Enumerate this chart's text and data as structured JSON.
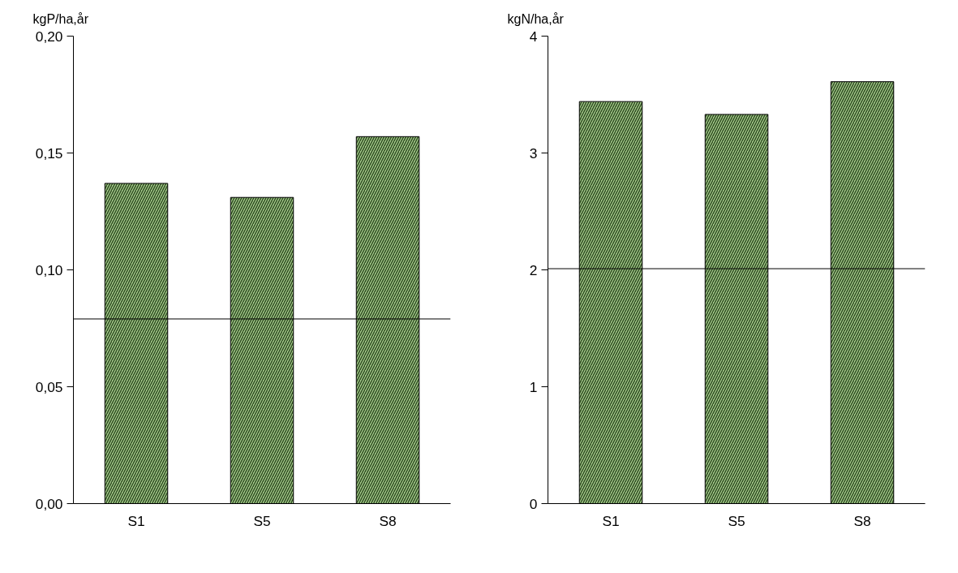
{
  "chart_data": [
    {
      "type": "bar",
      "ylabel": "kgP/ha,år",
      "categories": [
        "S1",
        "S5",
        "S8"
      ],
      "values": [
        0.137,
        0.131,
        0.157
      ],
      "color": "#a9d08e",
      "ylim": [
        0,
        0.2
      ],
      "yticks": [
        {
          "value": 0,
          "label": "0,00"
        },
        {
          "value": 0.05,
          "label": "0,05"
        },
        {
          "value": 0.1,
          "label": "0,10"
        },
        {
          "value": 0.15,
          "label": "0,15"
        },
        {
          "value": 0.2,
          "label": "0,20"
        }
      ],
      "grid": false,
      "ref_lines": [
        {
          "axis": "y",
          "value": 0.079,
          "color": "#000000",
          "line_style": "solid"
        }
      ]
    },
    {
      "type": "bar",
      "ylabel": "kgN/ha,år",
      "categories": [
        "S1",
        "S5",
        "S8"
      ],
      "values": [
        3.44,
        3.33,
        3.61
      ],
      "color": "#a9d08e",
      "ylim": [
        0,
        4
      ],
      "yticks": [
        0,
        1,
        2,
        3,
        4
      ],
      "grid": false,
      "ref_lines": [
        {
          "axis": "y",
          "value": 2.01,
          "color": "#000000",
          "line_style": "solid"
        }
      ]
    }
  ]
}
